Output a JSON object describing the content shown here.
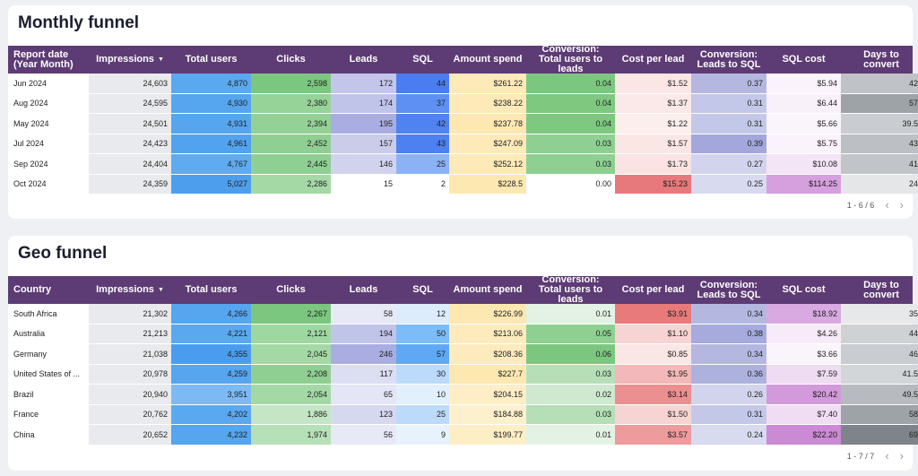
{
  "monthly": {
    "title": "Monthly funnel",
    "headers": [
      "Report date (Year Month)",
      "Impressions",
      "Total users",
      "Clicks",
      "Leads",
      "SQL",
      "Amount spend",
      "Conversion: Total users to leads",
      "Cost per lead",
      "Conversion: Leads to SQL",
      "SQL cost",
      "Days to convert"
    ],
    "sort_icon": "sort-descending-icon",
    "rows": [
      [
        "Jun 2024",
        "24,603",
        "4,870",
        "2,598",
        "172",
        "44",
        "$261.22",
        "0.04",
        "$1.52",
        "0.37",
        "$5.94",
        "42"
      ],
      [
        "Aug 2024",
        "24,595",
        "4,930",
        "2,380",
        "174",
        "37",
        "$238.22",
        "0.04",
        "$1.37",
        "0.31",
        "$6.44",
        "57"
      ],
      [
        "May 2024",
        "24,501",
        "4,931",
        "2,394",
        "195",
        "42",
        "$237.78",
        "0.04",
        "$1.22",
        "0.31",
        "$5.66",
        "39.5"
      ],
      [
        "Jul 2024",
        "24,423",
        "4,961",
        "2,452",
        "157",
        "43",
        "$247.09",
        "0.03",
        "$1.57",
        "0.39",
        "$5.75",
        "43"
      ],
      [
        "Sep 2024",
        "24,404",
        "4,767",
        "2,445",
        "146",
        "25",
        "$252.12",
        "0.03",
        "$1.73",
        "0.27",
        "$10.08",
        "41"
      ],
      [
        "Oct 2024",
        "24,359",
        "5,027",
        "2,286",
        "15",
        "2",
        "$228.5",
        "0.00",
        "$15.23",
        "0.25",
        "$114.25",
        "24"
      ]
    ],
    "colors": [
      [
        "#ffffff",
        "#e8eaed",
        "#5aa8f0",
        "#7cc77f",
        "#c3c6ea",
        "#4b7df0",
        "#fdeab8",
        "#7cc77f",
        "#fbe6e6",
        "#b4b8e0",
        "#faf3fb",
        "#bfc2c6"
      ],
      [
        "#ffffff",
        "#e8eaed",
        "#55a5ef",
        "#96d398",
        "#c1c4e9",
        "#5e8ff3",
        "#fdeab8",
        "#7ec880",
        "#fbe8e8",
        "#c4c8e8",
        "#f9f1fa",
        "#9ea3a8"
      ],
      [
        "#ffffff",
        "#e8eaed",
        "#55a5ef",
        "#94d196",
        "#a9ade1",
        "#4f83f1",
        "#fde8b2",
        "#7ec880",
        "#fdeeee",
        "#c4c8e8",
        "#faf4fb",
        "#c9ccd0"
      ],
      [
        "#ffffff",
        "#e8eaed",
        "#52a3ef",
        "#8fcf92",
        "#cacce9",
        "#4d80f1",
        "#fdeab8",
        "#8fd092",
        "#fbe6e6",
        "#a3a7dc",
        "#faf3fb",
        "#bcbfc3"
      ],
      [
        "#ffffff",
        "#e8eaed",
        "#5eabf1",
        "#8fcf92",
        "#d1d3ee",
        "#8cb2f6",
        "#fdeab8",
        "#8fd092",
        "#fbe3e3",
        "#d2d4ee",
        "#f3e4f6",
        "#c1c4c8"
      ],
      [
        "#ffffff",
        "#e8eaed",
        "#4d9fee",
        "#a4d9a6",
        "#ffffff",
        "#ffffff",
        "#fde8b2",
        "#ffffff",
        "#e7787b",
        "#d8daf0",
        "#d6a0de",
        "#e4e6e8"
      ]
    ],
    "pager": "1 - 6 / 6"
  },
  "geo": {
    "title": "Geo funnel",
    "headers": [
      "Country",
      "Impressions",
      "Total users",
      "Clicks",
      "Leads",
      "SQL",
      "Amount spend",
      "Conversion: Total users to leads",
      "Cost per lead",
      "Conversion: Leads to SQL",
      "SQL cost",
      "Days to convert"
    ],
    "sort_icon": "sort-descending-icon",
    "rows": [
      [
        "South Africa",
        "21,302",
        "4,266",
        "2,267",
        "58",
        "12",
        "$226.99",
        "0.01",
        "$3.91",
        "0.34",
        "$18.92",
        "35"
      ],
      [
        "Australia",
        "21,213",
        "4,221",
        "2,121",
        "194",
        "50",
        "$213.06",
        "0.05",
        "$1.10",
        "0.38",
        "$4.26",
        "44"
      ],
      [
        "Germany",
        "21,038",
        "4,355",
        "2,045",
        "246",
        "57",
        "$208.36",
        "0.06",
        "$0.85",
        "0.34",
        "$3.66",
        "46"
      ],
      [
        "United States of ...",
        "20,978",
        "4,259",
        "2,208",
        "117",
        "30",
        "$227.7",
        "0.03",
        "$1.95",
        "0.36",
        "$7.59",
        "41.5"
      ],
      [
        "Brazil",
        "20,940",
        "3,951",
        "2,054",
        "65",
        "10",
        "$204.15",
        "0.02",
        "$3.14",
        "0.26",
        "$20.42",
        "49.5"
      ],
      [
        "France",
        "20,762",
        "4,202",
        "1,886",
        "123",
        "25",
        "$184.88",
        "0.03",
        "$1.50",
        "0.31",
        "$7.40",
        "58"
      ],
      [
        "China",
        "20,652",
        "4,232",
        "1,974",
        "56",
        "9",
        "$199.77",
        "0.01",
        "$3.57",
        "0.24",
        "$22.20",
        "69"
      ]
    ],
    "colors": [
      [
        "#ffffff",
        "#e8eaed",
        "#55a5ef",
        "#7cc77f",
        "#e8e9f6",
        "#dcecfc",
        "#fde8b2",
        "#e3f2e4",
        "#e87a7c",
        "#b4b8e0",
        "#d9a9e1",
        "#e6e8ea"
      ],
      [
        "#ffffff",
        "#e8eaed",
        "#5aa8f0",
        "#9fd7a1",
        "#c1c4e9",
        "#7cbcf7",
        "#fdebbe",
        "#8fd092",
        "#f7d4d4",
        "#a6aadd",
        "#f7ebf9",
        "#cfd2d5"
      ],
      [
        "#ffffff",
        "#e8eaed",
        "#4a9dee",
        "#a4d9a6",
        "#a9ade1",
        "#5fa9f4",
        "#fdebbe",
        "#7cc77f",
        "#fbe6e6",
        "#b4b8e0",
        "#faf4fb",
        "#c9ccd0"
      ],
      [
        "#ffffff",
        "#e8eaed",
        "#55a5ef",
        "#8fcf92",
        "#dcdef2",
        "#bcdbfa",
        "#fde8b2",
        "#b6dfb8",
        "#f3b8b9",
        "#adb1de",
        "#efdcf2",
        "#d3d6d9"
      ],
      [
        "#ffffff",
        "#e8eaed",
        "#7dbaf3",
        "#a4d9a6",
        "#e4e5f5",
        "#e2effc",
        "#fdeec6",
        "#cfe9d0",
        "#ec8f91",
        "#d2d4ee",
        "#d29adb",
        "#b7babe"
      ],
      [
        "#ffffff",
        "#e8eaed",
        "#5aa8f0",
        "#c4e6c5",
        "#d6d8f0",
        "#bcdbfa",
        "#fdf0cc",
        "#b6dfb8",
        "#f7d4d4",
        "#c4c8e8",
        "#f0ddf3",
        "#9ea3a8"
      ],
      [
        "#ffffff",
        "#e8eaed",
        "#55a5ef",
        "#b6e0b7",
        "#e8e9f6",
        "#e8f2fd",
        "#fdeec6",
        "#e3f2e4",
        "#ee9b9d",
        "#d8daf0",
        "#ca8ad4",
        "#7e8489"
      ]
    ],
    "pager": "1 - 7 / 7"
  },
  "pager_icons": {
    "prev": "chevron-left-icon",
    "next": "chevron-right-icon"
  }
}
